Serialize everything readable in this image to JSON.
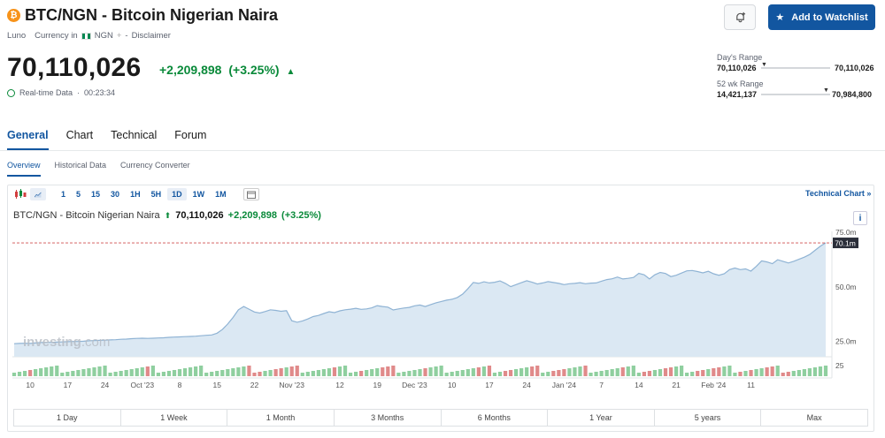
{
  "header": {
    "coin_symbol": "₿",
    "title": "BTC/NGN - Bitcoin Nigerian Naira",
    "source": "Luno",
    "currency_label": "Currency in",
    "currency": "NGN",
    "disclaimer": "Disclaimer",
    "watchlist_label": "Add to Watchlist"
  },
  "quote": {
    "price": "70,110,026",
    "change": "+2,209,898",
    "change_pct": "(+3.25%)",
    "realtime_label": "Real-time Data",
    "time": "00:23:34"
  },
  "ranges": {
    "day_label": "Day's Range",
    "day_low": "70,110,026",
    "day_high": "70,110,026",
    "year_label": "52 wk Range",
    "year_low": "14,421,137",
    "year_high": "70,984,800"
  },
  "tabs": [
    "General",
    "Chart",
    "Technical",
    "Forum"
  ],
  "subtabs": [
    "Overview",
    "Historical Data",
    "Currency Converter"
  ],
  "toolbar": {
    "intervals": [
      "1",
      "5",
      "15",
      "30",
      "1H",
      "5H",
      "1D",
      "1W",
      "1M"
    ],
    "active_interval": "1D",
    "technical_chart": "Technical Chart »"
  },
  "chart_header": {
    "name": "BTC/NGN - Bitcoin Nigerian Naira",
    "price": "70,110,026",
    "change": "+2,209,898",
    "change_pct": "(+3.25%)",
    "info": "i"
  },
  "range_buttons": [
    "1 Day",
    "1 Week",
    "1 Month",
    "3 Months",
    "6 Months",
    "1 Year",
    "5 years",
    "Max"
  ],
  "colors": {
    "accent": "#1256a0",
    "positive": "#0a8a3a",
    "negative": "#d23f3f",
    "area_fill": "#dbe8f3",
    "area_line": "#8fb3d4"
  },
  "chart_data": {
    "type": "area",
    "watermark": "investing.com",
    "y_ticks": [
      "75.0m",
      "50.0m",
      "25.0m"
    ],
    "y_tick_values": [
      75,
      50,
      25
    ],
    "ylim": [
      18,
      77
    ],
    "last_label": "70.1m",
    "last_value": 70.11,
    "volume_tick": "25",
    "x_tick_labels": [
      "10",
      "17",
      "24",
      "Oct '23",
      "8",
      "15",
      "22",
      "Nov '23",
      "12",
      "19",
      "Dec '23",
      "10",
      "17",
      "24",
      "Jan '24",
      "7",
      "14",
      "21",
      "Feb '24",
      "11"
    ],
    "x_tick_index": [
      3,
      10,
      17,
      24,
      31,
      38,
      45,
      52,
      61,
      68,
      75,
      82,
      89,
      96,
      103,
      110,
      117,
      124,
      131,
      138
    ],
    "series": [
      {
        "values": [
          24.0,
          24.1,
          24.2,
          24.1,
          24.3,
          24.5,
          24.6,
          24.6,
          24.7,
          24.8,
          24.9,
          25.0,
          25.0,
          25.1,
          25.3,
          25.4,
          25.5,
          25.6,
          25.7,
          25.8,
          26.0,
          26.1,
          26.3,
          26.4,
          26.5,
          26.4,
          26.5,
          26.6,
          26.7,
          26.9,
          27.0,
          27.1,
          27.2,
          27.3,
          27.4,
          27.6,
          27.8,
          28.0,
          28.8,
          30.5,
          33.0,
          36.0,
          39.5,
          41.0,
          39.8,
          38.5,
          38.0,
          38.7,
          39.5,
          39.2,
          38.8,
          39.1,
          34.5,
          33.8,
          34.4,
          35.3,
          36.4,
          36.9,
          37.8,
          38.6,
          38.2,
          39.0,
          39.5,
          39.8,
          40.2,
          39.7,
          39.9,
          40.4,
          41.4,
          41.0,
          40.7,
          39.4,
          39.9,
          40.3,
          40.6,
          41.3,
          41.7,
          41.0,
          41.9,
          42.7,
          43.3,
          43.9,
          44.3,
          45.1,
          46.7,
          49.2,
          52.0,
          51.6,
          52.3,
          51.8,
          52.1,
          52.7,
          51.6,
          50.1,
          51.0,
          51.9,
          52.8,
          52.1,
          51.3,
          51.8,
          52.4,
          52.0,
          51.6,
          51.0,
          51.4,
          51.6,
          51.9,
          51.4,
          51.7,
          51.8,
          52.6,
          53.3,
          53.7,
          54.5,
          53.6,
          53.9,
          54.3,
          56.2,
          55.5,
          53.6,
          55.5,
          56.6,
          56.1,
          54.7,
          55.3,
          56.3,
          57.3,
          57.5,
          57.0,
          56.4,
          57.1,
          56.0,
          55.3,
          56.0,
          57.9,
          58.6,
          57.9,
          58.2,
          57.2,
          59.4,
          61.9,
          61.4,
          60.6,
          62.4,
          61.7,
          60.9,
          61.7,
          62.6,
          63.6,
          64.8,
          66.7,
          68.6,
          70.11
        ]
      }
    ]
  }
}
